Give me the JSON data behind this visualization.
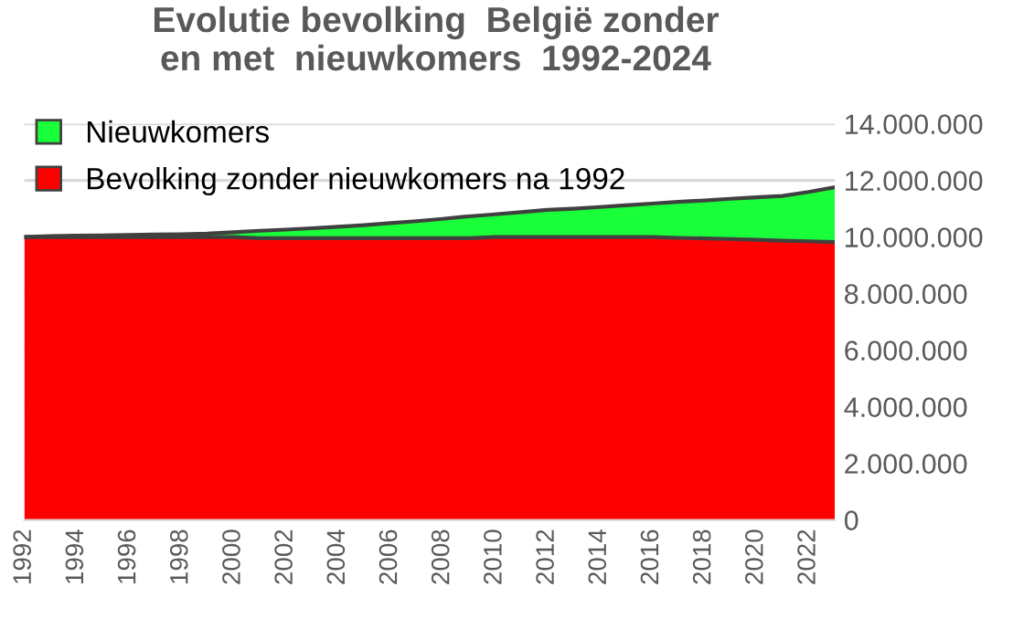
{
  "chart_data": {
    "type": "area",
    "stacked": true,
    "title": "Evolutie bevolking  België zonder\nen met  nieuwkomers  1992-2024",
    "categories": [
      "1992",
      null,
      "1994",
      null,
      "1996",
      null,
      "1998",
      null,
      "2000",
      null,
      "2002",
      null,
      "2004",
      null,
      "2006",
      null,
      "2008",
      null,
      "2010",
      null,
      "2012",
      null,
      "2014",
      null,
      "2016",
      null,
      "2018",
      null,
      "2020",
      null,
      "2022",
      null
    ],
    "series": [
      {
        "name": "Bevolking zonder nieuwkomers na 1992",
        "color": "#ff0000",
        "values": [
          10000000,
          10000000,
          10000000,
          10000000,
          10000000,
          10000000,
          10000000,
          10000000,
          10000000,
          9960000,
          9960000,
          9960000,
          9960000,
          9960000,
          9960000,
          9960000,
          9960000,
          9960000,
          10000000,
          10000000,
          10000000,
          10000000,
          10000000,
          10000000,
          10000000,
          9970000,
          9950000,
          9930000,
          9900000,
          9870000,
          9850000,
          9820000
        ]
      },
      {
        "name": "Nieuwkomers",
        "color": "#19ff39",
        "values": [
          0,
          30000,
          50000,
          60000,
          70000,
          90000,
          100000,
          120000,
          170000,
          260000,
          300000,
          350000,
          400000,
          460000,
          530000,
          600000,
          680000,
          770000,
          800000,
          880000,
          960000,
          1000000,
          1060000,
          1120000,
          1180000,
          1270000,
          1340000,
          1420000,
          1500000,
          1580000,
          1740000,
          1940000
        ]
      }
    ],
    "ylim": [
      0,
      14000000
    ],
    "yticks": [
      0,
      {
        "value": 2000000,
        "label": "2.000.000"
      },
      {
        "value": 4000000,
        "label": "4.000.000"
      },
      {
        "value": 6000000,
        "label": "6.000.000"
      },
      {
        "value": 8000000,
        "label": "8.000.000"
      },
      {
        "value": 10000000,
        "label": "10.000.000"
      },
      {
        "value": 12000000,
        "label": "12.000.000"
      },
      {
        "value": 14000000,
        "label": "14.000.000"
      }
    ],
    "grid": "y",
    "legend": "top left"
  }
}
